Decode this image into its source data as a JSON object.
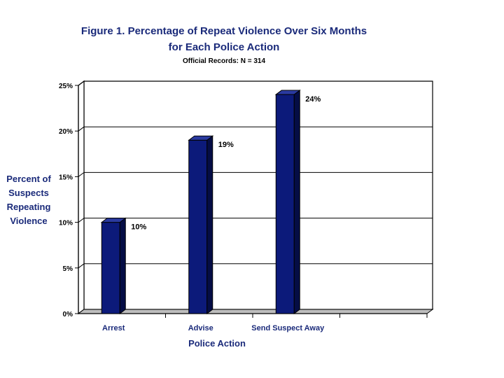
{
  "chart_data": {
    "type": "bar",
    "title": "Figure 1. Percentage of Repeat Violence Over Six Months",
    "title_line2": "for Each Police Action",
    "subtitle": "Official Records: N = 314",
    "categories": [
      "Arrest",
      "Advise",
      "Send Suspect Away"
    ],
    "values": [
      10,
      19,
      24
    ],
    "data_labels": [
      "10%",
      "19%",
      "24%"
    ],
    "xlabel": "Police Action",
    "ylabel_lines": [
      "Percent of",
      "Suspects",
      "Repeating",
      "Violence"
    ],
    "ylim": [
      0,
      25
    ],
    "yticks": [
      0,
      5,
      10,
      15,
      20,
      25
    ],
    "ytick_labels": [
      "0%",
      "5%",
      "10%",
      "15%",
      "20%",
      "25%"
    ],
    "grid": true,
    "bar_color": "#0c1a7a",
    "bar_side_color": "#050d45",
    "bar_top_color": "#2a3aa0"
  }
}
